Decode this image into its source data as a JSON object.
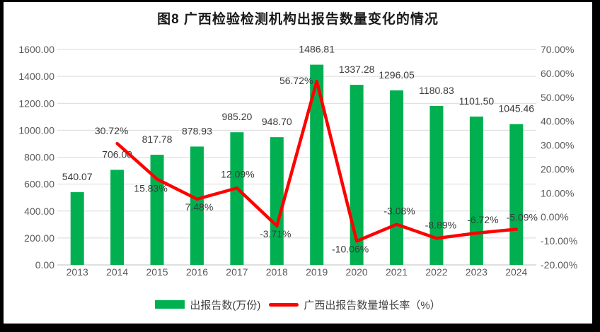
{
  "title": "图8 广西检验检测机构出报告数量变化的情况",
  "chart_data": {
    "type": "bar+line combo",
    "title": "图8 广西检验检测机构出报告数量变化的情况",
    "categories": [
      "2013",
      "2014",
      "2015",
      "2016",
      "2017",
      "2018",
      "2019",
      "2020",
      "2021",
      "2022",
      "2023",
      "2024"
    ],
    "series": [
      {
        "name": "出报告数(万份)",
        "type": "bar",
        "axis": "left",
        "color": "#00B050",
        "values": [
          540.07,
          706.0,
          817.78,
          878.93,
          985.2,
          948.7,
          1486.81,
          1337.28,
          1296.05,
          1180.83,
          1101.5,
          1045.46
        ],
        "labels": [
          "540.07",
          "706.00",
          "817.78",
          "878.93",
          "985.20",
          "948.70",
          "1486.81",
          "1337.28",
          "1296.05",
          "1180.83",
          "1101.50",
          "1045.46"
        ]
      },
      {
        "name": "广西出报告数量增长率（%）",
        "type": "line",
        "axis": "right",
        "color": "#FF0000",
        "values": [
          null,
          30.72,
          15.83,
          7.48,
          12.09,
          -3.71,
          56.72,
          -10.06,
          -3.08,
          -8.89,
          -6.72,
          -5.09
        ],
        "labels": [
          null,
          "30.72%",
          "15.83%",
          "7.48%",
          "12.09%",
          "-3.71%",
          "56.72%",
          "-10.06%",
          "-3.08%",
          "-8.89%",
          "-6.72%",
          "-5.09%"
        ],
        "label_offsets": [
          [
            0,
            0
          ],
          [
            -8,
            -18
          ],
          [
            -9,
            13
          ],
          [
            3,
            11
          ],
          [
            1,
            -20
          ],
          [
            -2,
            11
          ],
          [
            -29,
            -1
          ],
          [
            -9,
            11
          ],
          [
            4,
            -19
          ],
          [
            6,
            -19
          ],
          [
            9,
            -19
          ],
          [
            8,
            -17
          ]
        ]
      }
    ],
    "left_axis": {
      "min": 0,
      "max": 1600,
      "step": 200,
      "tick_labels": [
        "0.00",
        "200.00",
        "400.00",
        "600.00",
        "800.00",
        "1000.00",
        "1200.00",
        "1400.00",
        "1600.00"
      ]
    },
    "right_axis": {
      "min": -20,
      "max": 70,
      "step": 10,
      "tick_labels": [
        "-20.00%",
        "-10.00%",
        "0.00%",
        "10.00%",
        "20.00%",
        "30.00%",
        "40.00%",
        "50.00%",
        "60.00%",
        "70.00%"
      ]
    },
    "grid": true,
    "legend_position": "bottom",
    "colors": {
      "bar": "#00B050",
      "line": "#FF0000",
      "grid": "#D9D9D9",
      "axis_line": "#BFBFBF",
      "tick_text": "#595959",
      "data_label_text": "#3B3B3B",
      "title_text": "#1A1A1A",
      "frame": "#000000",
      "background": "#FFFFFF"
    }
  },
  "legend": {
    "items": [
      {
        "label": "出报告数(万份)",
        "swatch": "bar"
      },
      {
        "label": "广西出报告数量增长率（%）",
        "swatch": "line"
      }
    ]
  }
}
